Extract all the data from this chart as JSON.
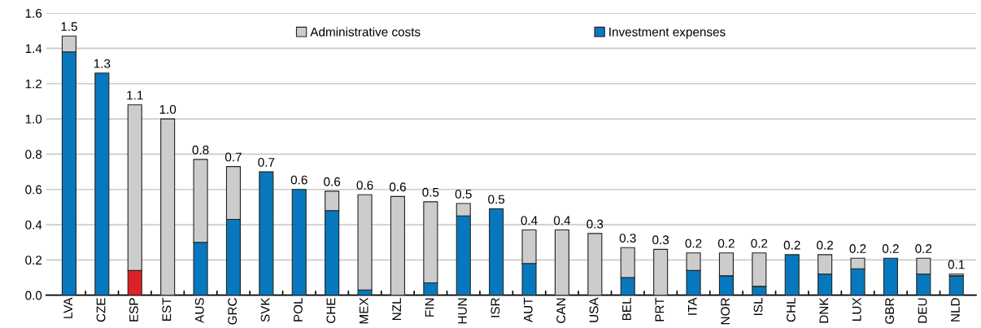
{
  "chart_data": {
    "type": "bar",
    "stacked": true,
    "categories": [
      "LVA",
      "CZE",
      "ESP",
      "EST",
      "AUS",
      "GRC",
      "SVK",
      "POL",
      "CHE",
      "MEX",
      "NZL",
      "FIN",
      "HUN",
      "ISR",
      "AUT",
      "CAN",
      "USA",
      "BEL",
      "PRT",
      "ITA",
      "NOR",
      "ISL",
      "CHL",
      "DNK",
      "LUX",
      "GBR",
      "DEU",
      "NLD"
    ],
    "series": [
      {
        "name": "Investment expenses",
        "color": "#0878be",
        "colors": [
          "#0878be",
          "#0878be",
          "#dc2228",
          "#0878be",
          "#0878be",
          "#0878be",
          "#0878be",
          "#0878be",
          "#0878be",
          "#0878be",
          "#0878be",
          "#0878be",
          "#0878be",
          "#0878be",
          "#0878be",
          "#0878be",
          "#0878be",
          "#0878be",
          "#0878be",
          "#0878be",
          "#0878be",
          "#0878be",
          "#0878be",
          "#0878be",
          "#0878be",
          "#0878be",
          "#0878be",
          "#0878be"
        ],
        "values": [
          1.38,
          1.26,
          0.14,
          0,
          0.3,
          0.43,
          0.7,
          0.6,
          0.48,
          0.03,
          0,
          0.07,
          0.45,
          0.49,
          0.18,
          0,
          0,
          0.1,
          0,
          0.14,
          0.11,
          0.05,
          0.23,
          0.12,
          0.15,
          0.21,
          0.12,
          0.11
        ]
      },
      {
        "name": "Administrative costs",
        "color": "#cccccc",
        "values": [
          0.09,
          0,
          0.94,
          1.0,
          0.47,
          0.3,
          0,
          0,
          0.11,
          0.54,
          0.56,
          0.46,
          0.07,
          0,
          0.19,
          0.37,
          0.35,
          0.17,
          0.26,
          0.1,
          0.13,
          0.19,
          0,
          0.11,
          0.06,
          0,
          0.09,
          0.01
        ]
      }
    ],
    "totals": [
      "1.5",
      "1.3",
      "1.1",
      "1.0",
      "0.8",
      "0.7",
      "0.7",
      "0.6",
      "0.6",
      "0.6",
      "0.6",
      "0.5",
      "0.5",
      "0.5",
      "0.4",
      "0.4",
      "0.3",
      "0.3",
      "0.3",
      "0.2",
      "0.2",
      "0.2",
      "0.2",
      "0.2",
      "0.2",
      "0.2",
      "0.2",
      "0.1"
    ],
    "ylim": [
      0,
      1.6
    ],
    "yticks": [
      {
        "value": 0,
        "label": "0.0"
      },
      {
        "value": 0.2,
        "label": "0.2"
      },
      {
        "value": 0.4,
        "label": "0.4"
      },
      {
        "value": 0.6,
        "label": "0.6"
      },
      {
        "value": 0.8,
        "label": "0.8"
      },
      {
        "value": 1.0,
        "label": "1.0"
      },
      {
        "value": 1.2,
        "label": "1.2"
      },
      {
        "value": 1.4,
        "label": "1.4"
      },
      {
        "value": 1.6,
        "label": "1.6"
      }
    ],
    "grid": "y",
    "legend": "top"
  }
}
